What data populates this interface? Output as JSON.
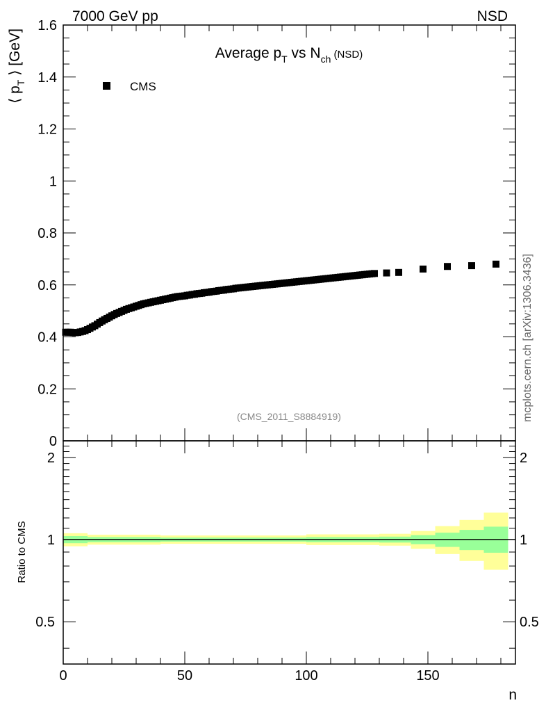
{
  "header": {
    "energy_label": "7000 GeV pp",
    "process_label": "NSD"
  },
  "side_label": "mcplots.cern.ch [arXiv:1306.3436]",
  "colors": {
    "frame": "#000000",
    "marker": "#000000",
    "band_inner": "#99ff99",
    "band_outer": "#ffff99",
    "watermark": "#888888",
    "side_label": "#666666"
  },
  "chart_data": [
    {
      "type": "scatter",
      "panel": "main",
      "title": {
        "main": "Average p",
        "sub1": "T",
        "mid": " vs N",
        "sub2": "ch",
        "tail": " (NSD)"
      },
      "ylabel": {
        "pre": "⟨ p",
        "sub": "T",
        "post": " ⟩ [GeV]"
      },
      "xlabel": "n",
      "xlim": [
        0,
        186
      ],
      "ylim": [
        0,
        1.6
      ],
      "yticks": [
        0,
        0.2,
        0.4,
        0.6,
        0.8,
        1,
        1.2,
        1.4,
        1.6
      ],
      "ytick_labels": [
        "0",
        "0.2",
        "0.4",
        "0.6",
        "0.8",
        "1",
        "1.2",
        "1.4",
        "1.6"
      ],
      "watermark": "(CMS_2011_S8884919)",
      "legend": {
        "position": "top-left",
        "entries": [
          "CMS"
        ]
      },
      "series": [
        {
          "name": "CMS",
          "x": [
            1,
            2,
            3,
            4,
            5,
            6,
            7,
            8,
            9,
            10,
            11,
            12,
            13,
            14,
            15,
            16,
            17,
            18,
            19,
            20,
            21,
            22,
            23,
            24,
            25,
            26,
            27,
            28,
            29,
            30,
            31,
            32,
            33,
            34,
            35,
            36,
            37,
            38,
            39,
            40,
            41,
            42,
            43,
            44,
            45,
            46,
            47,
            48,
            49,
            50,
            51,
            52,
            53,
            54,
            55,
            56,
            57,
            58,
            59,
            60,
            61,
            62,
            63,
            64,
            65,
            66,
            67,
            68,
            69,
            70,
            71,
            72,
            73,
            74,
            75,
            76,
            77,
            78,
            79,
            80,
            81,
            82,
            83,
            84,
            85,
            86,
            87,
            88,
            89,
            90,
            91,
            92,
            93,
            94,
            95,
            96,
            97,
            98,
            99,
            100,
            101,
            102,
            103,
            104,
            105,
            106,
            107,
            108,
            109,
            110,
            111,
            112,
            113,
            114,
            115,
            116,
            117,
            118,
            119,
            120,
            121,
            122,
            123,
            124,
            125,
            126,
            127,
            128,
            133,
            138,
            148,
            158,
            168,
            178
          ],
          "y": [
            0.418,
            0.418,
            0.418,
            0.417,
            0.416,
            0.417,
            0.419,
            0.421,
            0.424,
            0.428,
            0.433,
            0.438,
            0.443,
            0.449,
            0.455,
            0.461,
            0.466,
            0.471,
            0.476,
            0.481,
            0.486,
            0.49,
            0.494,
            0.498,
            0.502,
            0.506,
            0.509,
            0.512,
            0.515,
            0.518,
            0.521,
            0.524,
            0.527,
            0.529,
            0.531,
            0.533,
            0.535,
            0.537,
            0.539,
            0.541,
            0.543,
            0.545,
            0.547,
            0.549,
            0.551,
            0.553,
            0.555,
            0.556,
            0.557,
            0.558,
            0.56,
            0.561,
            0.563,
            0.564,
            0.566,
            0.567,
            0.568,
            0.57,
            0.571,
            0.572,
            0.574,
            0.575,
            0.576,
            0.578,
            0.579,
            0.58,
            0.582,
            0.583,
            0.584,
            0.585,
            0.587,
            0.588,
            0.589,
            0.59,
            0.591,
            0.592,
            0.593,
            0.594,
            0.595,
            0.596,
            0.597,
            0.598,
            0.599,
            0.6,
            0.601,
            0.602,
            0.603,
            0.604,
            0.605,
            0.606,
            0.607,
            0.608,
            0.609,
            0.61,
            0.611,
            0.612,
            0.613,
            0.614,
            0.615,
            0.616,
            0.617,
            0.618,
            0.619,
            0.62,
            0.621,
            0.622,
            0.623,
            0.624,
            0.625,
            0.626,
            0.627,
            0.628,
            0.629,
            0.63,
            0.631,
            0.632,
            0.633,
            0.634,
            0.635,
            0.636,
            0.637,
            0.638,
            0.639,
            0.64,
            0.641,
            0.642,
            0.643,
            0.644,
            0.646,
            0.648,
            0.661,
            0.671,
            0.674,
            0.68
          ]
        }
      ]
    },
    {
      "type": "area",
      "panel": "ratio",
      "ylabel": "Ratio to CMS",
      "xlabel": "n",
      "xlim": [
        0,
        186
      ],
      "ylim": [
        0.35,
        2.3
      ],
      "yscale": "log",
      "yticks_major": [
        0.5,
        1,
        2
      ],
      "ytick_labels": [
        "0.5",
        "1",
        "2"
      ],
      "xticks": [
        0,
        50,
        100,
        150
      ],
      "xtick_labels": [
        "0",
        "50",
        "100",
        "150"
      ],
      "reference_line": 1,
      "bands": [
        {
          "x0": 0,
          "x1": 10,
          "inner": [
            0.97,
            1.03
          ],
          "outer": [
            0.945,
            1.055
          ]
        },
        {
          "x0": 10,
          "x1": 40,
          "inner": [
            0.978,
            1.022
          ],
          "outer": [
            0.958,
            1.042
          ]
        },
        {
          "x0": 40,
          "x1": 100,
          "inner": [
            0.983,
            1.017
          ],
          "outer": [
            0.965,
            1.035
          ]
        },
        {
          "x0": 100,
          "x1": 130,
          "inner": [
            0.978,
            1.022
          ],
          "outer": [
            0.955,
            1.045
          ]
        },
        {
          "x0": 130,
          "x1": 143,
          "inner": [
            0.975,
            1.025
          ],
          "outer": [
            0.95,
            1.05
          ]
        },
        {
          "x0": 143,
          "x1": 153,
          "inner": [
            0.962,
            1.038
          ],
          "outer": [
            0.925,
            1.075
          ]
        },
        {
          "x0": 153,
          "x1": 163,
          "inner": [
            0.94,
            1.06
          ],
          "outer": [
            0.885,
            1.12
          ]
        },
        {
          "x0": 163,
          "x1": 173,
          "inner": [
            0.915,
            1.085
          ],
          "outer": [
            0.835,
            1.18
          ]
        },
        {
          "x0": 173,
          "x1": 183,
          "inner": [
            0.895,
            1.115
          ],
          "outer": [
            0.775,
            1.255
          ]
        }
      ]
    }
  ]
}
